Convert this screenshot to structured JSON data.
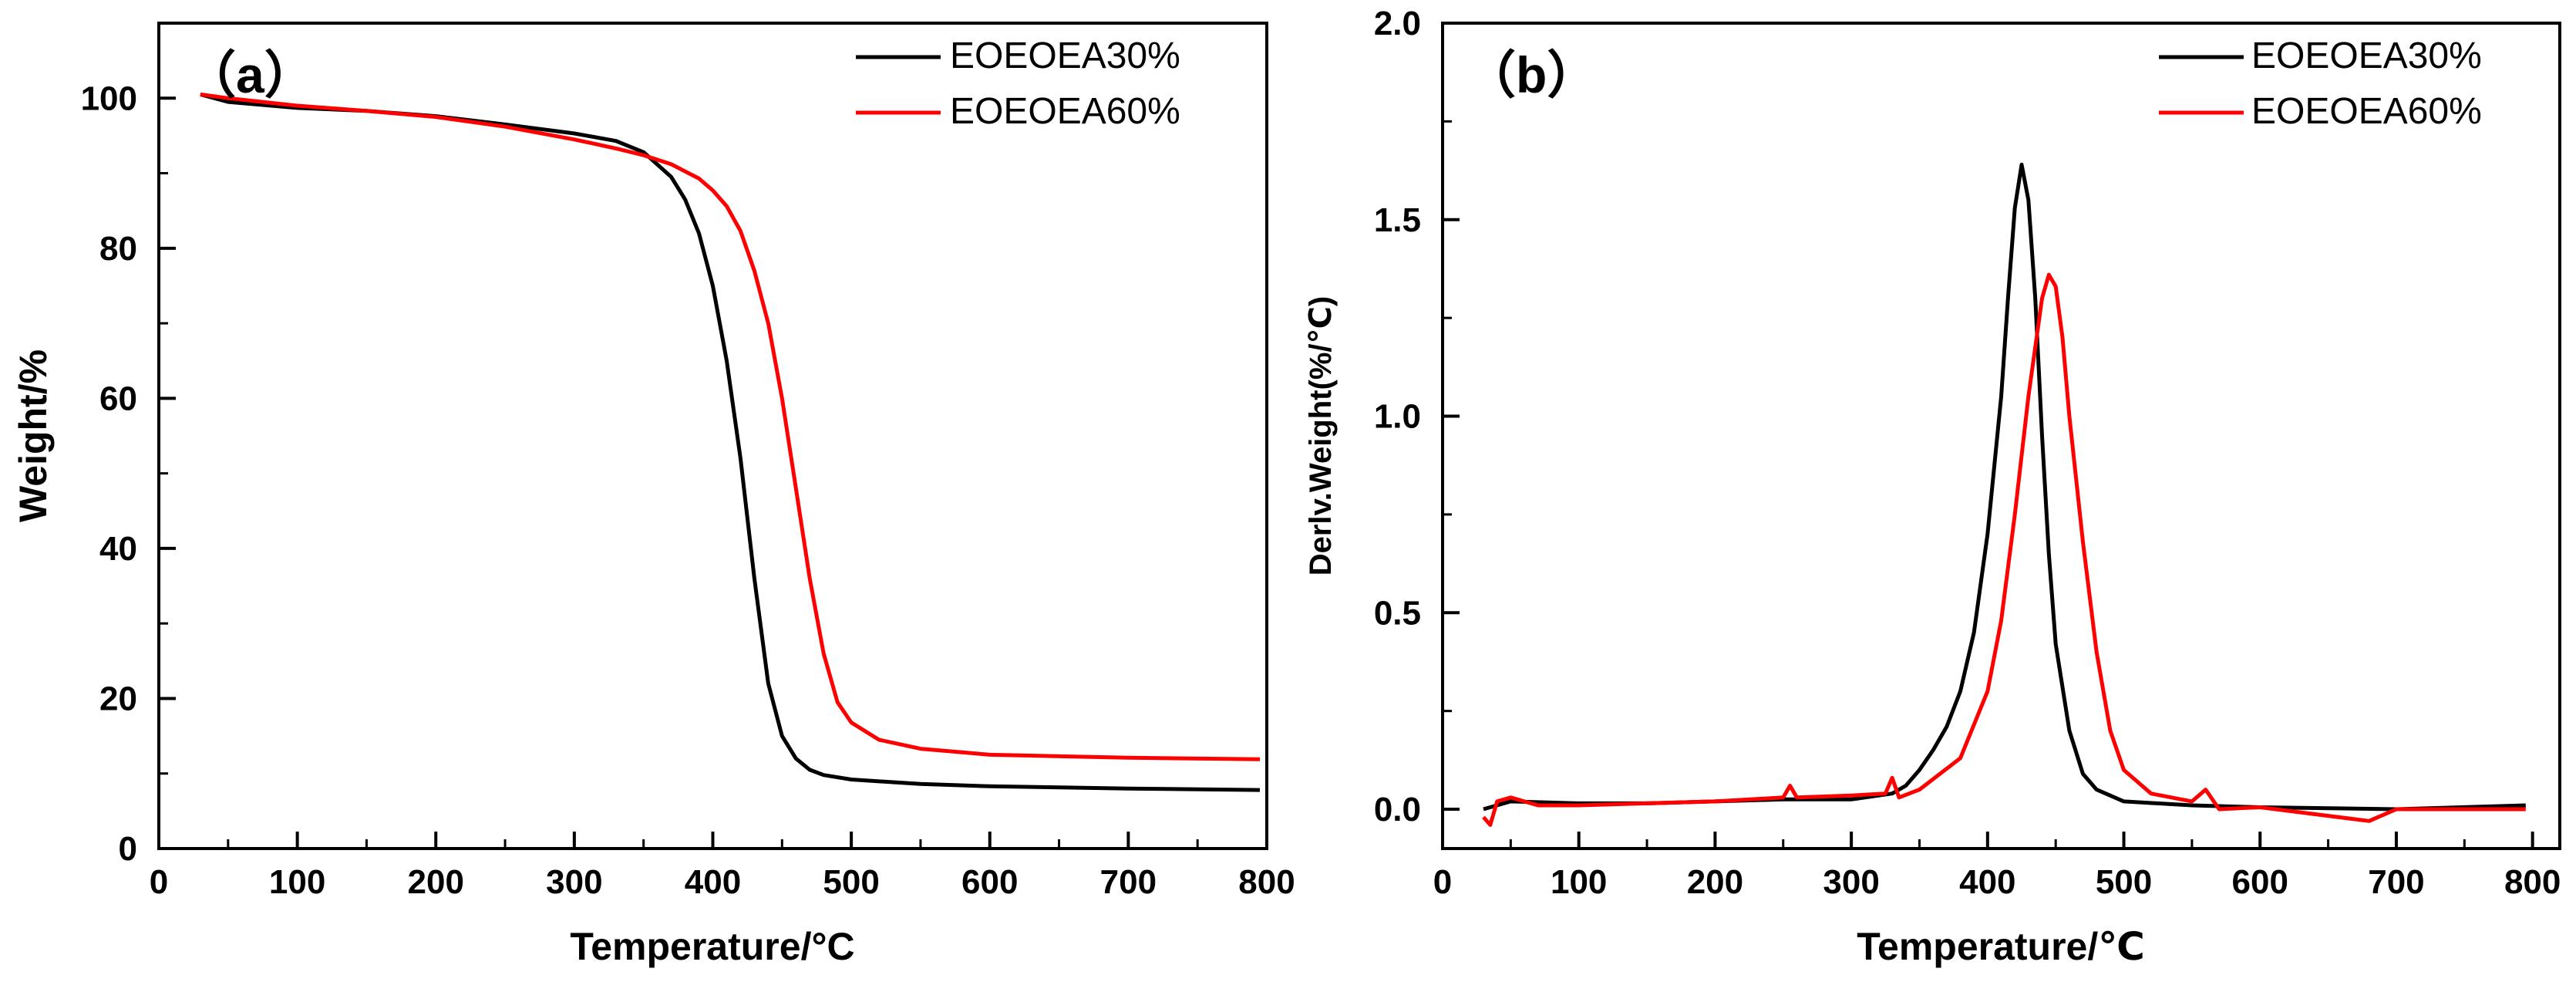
{
  "chart_data": [
    {
      "type": "line",
      "panel_label": "（a）",
      "xlabel": "Temperature/°C",
      "ylabel": "Weight/%",
      "xlim": [
        0,
        800
      ],
      "ylim": [
        0,
        110
      ],
      "xticks": [
        0,
        100,
        200,
        300,
        400,
        500,
        600,
        700,
        800
      ],
      "yticks": [
        0,
        20,
        40,
        60,
        80,
        100
      ],
      "legend_position": "top-right",
      "series": [
        {
          "name": "EOEOEA30%",
          "color": "#000000",
          "x": [
            30,
            50,
            100,
            150,
            200,
            250,
            300,
            330,
            350,
            370,
            380,
            390,
            400,
            410,
            420,
            430,
            440,
            450,
            460,
            470,
            480,
            500,
            550,
            600,
            700,
            795
          ],
          "y": [
            100.5,
            99.5,
            98.7,
            98.3,
            97.6,
            96.5,
            95.3,
            94.3,
            92.8,
            89.5,
            86.5,
            82.0,
            75.0,
            65.0,
            52.0,
            36.0,
            22.0,
            15.0,
            12.0,
            10.5,
            9.8,
            9.2,
            8.6,
            8.3,
            8.0,
            7.8
          ]
        },
        {
          "name": "EOEOEA60%",
          "color": "#ff0000",
          "x": [
            30,
            50,
            100,
            150,
            200,
            250,
            300,
            330,
            350,
            370,
            390,
            400,
            410,
            420,
            430,
            440,
            450,
            460,
            470,
            480,
            490,
            500,
            520,
            550,
            600,
            700,
            795
          ],
          "y": [
            100.5,
            100.0,
            99.0,
            98.3,
            97.5,
            96.2,
            94.5,
            93.3,
            92.4,
            91.2,
            89.3,
            87.7,
            85.6,
            82.3,
            77.0,
            70.0,
            60.0,
            48.0,
            36.0,
            26.0,
            19.5,
            16.8,
            14.5,
            13.3,
            12.5,
            12.1,
            11.9
          ]
        }
      ]
    },
    {
      "type": "line",
      "panel_label": "（b）",
      "xlabel": "Temperature/℃",
      "ylabel": "Derlv.Weight(%/℃)",
      "xlim": [
        0,
        820
      ],
      "ylim": [
        -0.1,
        2.0
      ],
      "xticks": [
        0,
        100,
        200,
        300,
        400,
        500,
        600,
        700,
        800
      ],
      "yticks": [
        0.0,
        0.5,
        1.0,
        1.5,
        2.0
      ],
      "ytick_labels": [
        "0.0",
        "0.5",
        "1.0",
        "1.5",
        "2.0"
      ],
      "legend_position": "top-right",
      "series": [
        {
          "name": "EOEOEA30%",
          "color": "#000000",
          "x": [
            30,
            50,
            100,
            150,
            200,
            250,
            300,
            330,
            340,
            350,
            360,
            370,
            380,
            390,
            400,
            410,
            415,
            420,
            425,
            430,
            435,
            440,
            445,
            450,
            460,
            470,
            480,
            500,
            550,
            600,
            700,
            795
          ],
          "y": [
            0.0,
            0.02,
            0.015,
            0.015,
            0.02,
            0.025,
            0.025,
            0.04,
            0.06,
            0.1,
            0.15,
            0.21,
            0.3,
            0.45,
            0.7,
            1.05,
            1.3,
            1.53,
            1.64,
            1.55,
            1.3,
            0.95,
            0.65,
            0.42,
            0.2,
            0.09,
            0.05,
            0.02,
            0.01,
            0.005,
            0.0,
            0.01
          ]
        },
        {
          "name": "EOEOEA60%",
          "color": "#ff0000",
          "x": [
            30,
            35,
            40,
            50,
            60,
            70,
            100,
            150,
            200,
            250,
            255,
            260,
            300,
            325,
            330,
            335,
            350,
            380,
            400,
            410,
            420,
            430,
            440,
            445,
            450,
            455,
            460,
            470,
            480,
            490,
            500,
            520,
            550,
            560,
            570,
            600,
            680,
            700,
            795
          ],
          "y": [
            -0.02,
            -0.04,
            0.02,
            0.03,
            0.02,
            0.01,
            0.01,
            0.015,
            0.02,
            0.03,
            0.06,
            0.03,
            0.035,
            0.04,
            0.08,
            0.03,
            0.05,
            0.13,
            0.3,
            0.48,
            0.75,
            1.05,
            1.3,
            1.36,
            1.33,
            1.2,
            1.0,
            0.68,
            0.4,
            0.2,
            0.1,
            0.04,
            0.02,
            0.05,
            0.0,
            0.005,
            -0.03,
            0.0,
            0.0
          ]
        }
      ]
    }
  ]
}
